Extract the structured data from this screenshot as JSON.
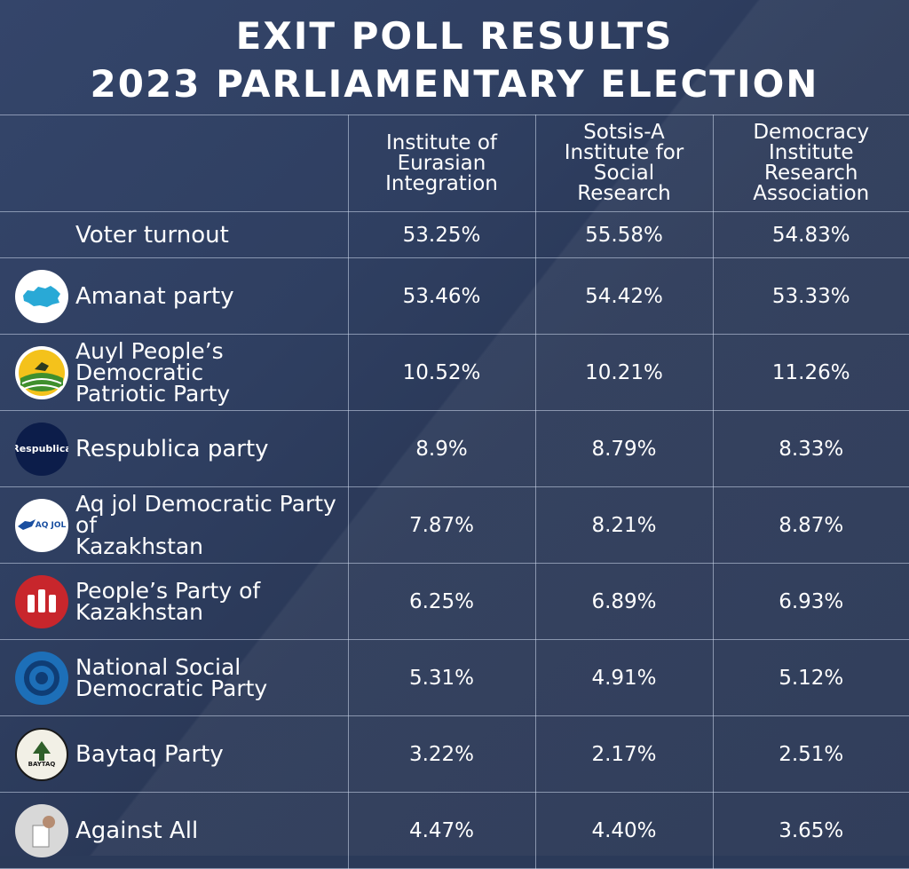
{
  "title": {
    "line1": "EXIT POLL RESULTS",
    "line2": "2023 PARLIAMENTARY ELECTION"
  },
  "sources": [
    {
      "line1": "Institute of",
      "line2": "Eurasian",
      "line3": "Integration",
      "line4": ""
    },
    {
      "line1": "Sotsis-A",
      "line2": "Institute for",
      "line3": "Social",
      "line4": "Research"
    },
    {
      "line1": "Democracy",
      "line2": "Institute",
      "line3": "Research",
      "line4": "Association"
    }
  ],
  "rows": [
    {
      "label1": "Voter turnout",
      "label2": "",
      "values": [
        "53.25%",
        "55.58%",
        "54.83%"
      ]
    },
    {
      "label1": "Amanat party",
      "label2": "",
      "logo": "amanat-logo",
      "values": [
        "53.46%",
        "54.42%",
        "53.33%"
      ]
    },
    {
      "label1": "Auyl People’s Democratic",
      "label2": "Patriotic Party",
      "logo": "auyl-logo",
      "values": [
        "10.52%",
        "10.21%",
        "11.26%"
      ]
    },
    {
      "label1": "Respublica party",
      "label2": "",
      "logo": "respublica-logo",
      "logo_text": "Respublica",
      "values": [
        "8.9%",
        "8.79%",
        "8.33%"
      ]
    },
    {
      "label1": "Aq jol Democratic Party of",
      "label2": "Kazakhstan",
      "logo": "aqjol-logo",
      "logo_text": "AQ JOL",
      "values": [
        "7.87%",
        "8.21%",
        "8.87%"
      ]
    },
    {
      "label1": "People’s Party of",
      "label2": "Kazakhstan",
      "logo": "peoples-party-logo",
      "values": [
        "6.25%",
        "6.89%",
        "6.93%"
      ]
    },
    {
      "label1": "National Social",
      "label2": "Democratic Party",
      "logo": "nsdp-logo",
      "values": [
        "5.31%",
        "4.91%",
        "5.12%"
      ]
    },
    {
      "label1": "Baytaq Party",
      "label2": "",
      "logo": "baytaq-logo",
      "logo_text": "BAYTAQ",
      "values": [
        "3.22%",
        "2.17%",
        "2.51%"
      ]
    },
    {
      "label1": "Against All",
      "label2": "",
      "logo": "ballot-icon",
      "values": [
        "4.47%",
        "4.40%",
        "3.65%"
      ]
    }
  ],
  "colors": {
    "background": "#2b3a59",
    "grid": "#c8d2e6",
    "text": "#ffffff",
    "amanat": "#29a9d6",
    "auyl": "#3f8f2d",
    "respublica": "#0c1d4a",
    "aqjol": "#1a4fa0",
    "peoples": "#c8262c",
    "nsdp": "#1d6fb8"
  }
}
